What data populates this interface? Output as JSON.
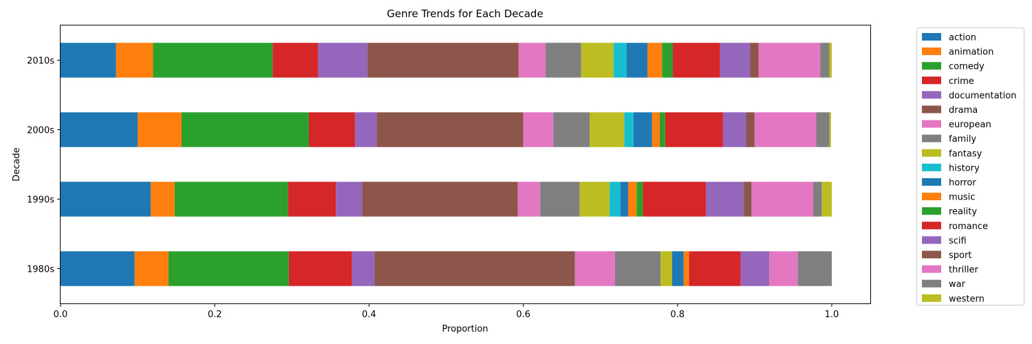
{
  "chart_data": {
    "type": "bar",
    "orientation": "horizontal",
    "stacked": true,
    "title": "Genre Trends for Each Decade",
    "xlabel": "Proportion",
    "ylabel": "Decade",
    "xlim": [
      0,
      1.05
    ],
    "xticks": [
      0.0,
      0.2,
      0.4,
      0.6,
      0.8,
      1.0
    ],
    "xtick_labels": [
      "0.0",
      "0.2",
      "0.4",
      "0.6",
      "0.8",
      "1.0"
    ],
    "categories": [
      "1980s",
      "1990s",
      "2000s",
      "2010s"
    ],
    "legend_position": "outside-right",
    "grid": false,
    "series": [
      {
        "name": "action",
        "color": "#1f77b4",
        "values": [
          0.096,
          0.117,
          0.1,
          0.072
        ]
      },
      {
        "name": "animation",
        "color": "#ff7f0e",
        "values": [
          0.044,
          0.031,
          0.057,
          0.048
        ]
      },
      {
        "name": "comedy",
        "color": "#2ca02c",
        "values": [
          0.156,
          0.147,
          0.165,
          0.155
        ]
      },
      {
        "name": "crime",
        "color": "#d62728",
        "values": [
          0.082,
          0.062,
          0.06,
          0.059
        ]
      },
      {
        "name": "documentation",
        "color": "#9467bd",
        "values": [
          0.029,
          0.034,
          0.028,
          0.064
        ]
      },
      {
        "name": "drama",
        "color": "#8c564b",
        "values": [
          0.26,
          0.202,
          0.19,
          0.196
        ]
      },
      {
        "name": "european",
        "color": "#e377c2",
        "values": [
          0.052,
          0.029,
          0.039,
          0.035
        ]
      },
      {
        "name": "family",
        "color": "#7f7f7f",
        "values": [
          0.059,
          0.051,
          0.047,
          0.046
        ]
      },
      {
        "name": "fantasy",
        "color": "#bcbd22",
        "values": [
          0.015,
          0.039,
          0.045,
          0.042
        ]
      },
      {
        "name": "history",
        "color": "#17becf",
        "values": [
          0.0,
          0.014,
          0.012,
          0.017
        ]
      },
      {
        "name": "horror",
        "color": "#1f77b4",
        "values": [
          0.015,
          0.01,
          0.024,
          0.027
        ]
      },
      {
        "name": "music",
        "color": "#ff7f0e",
        "values": [
          0.007,
          0.011,
          0.01,
          0.019
        ]
      },
      {
        "name": "reality",
        "color": "#2ca02c",
        "values": [
          0.0,
          0.008,
          0.007,
          0.014
        ]
      },
      {
        "name": "romance",
        "color": "#d62728",
        "values": [
          0.067,
          0.082,
          0.075,
          0.061
        ]
      },
      {
        "name": "scifi",
        "color": "#9467bd",
        "values": [
          0.037,
          0.049,
          0.03,
          0.039
        ]
      },
      {
        "name": "sport",
        "color": "#8c564b",
        "values": [
          0.0,
          0.01,
          0.011,
          0.011
        ]
      },
      {
        "name": "thriller",
        "color": "#e377c2",
        "values": [
          0.037,
          0.08,
          0.08,
          0.08
        ]
      },
      {
        "name": "war",
        "color": "#7f7f7f",
        "values": [
          0.044,
          0.011,
          0.017,
          0.012
        ]
      },
      {
        "name": "western",
        "color": "#bcbd22",
        "values": [
          0.0,
          0.013,
          0.002,
          0.003
        ]
      }
    ]
  }
}
